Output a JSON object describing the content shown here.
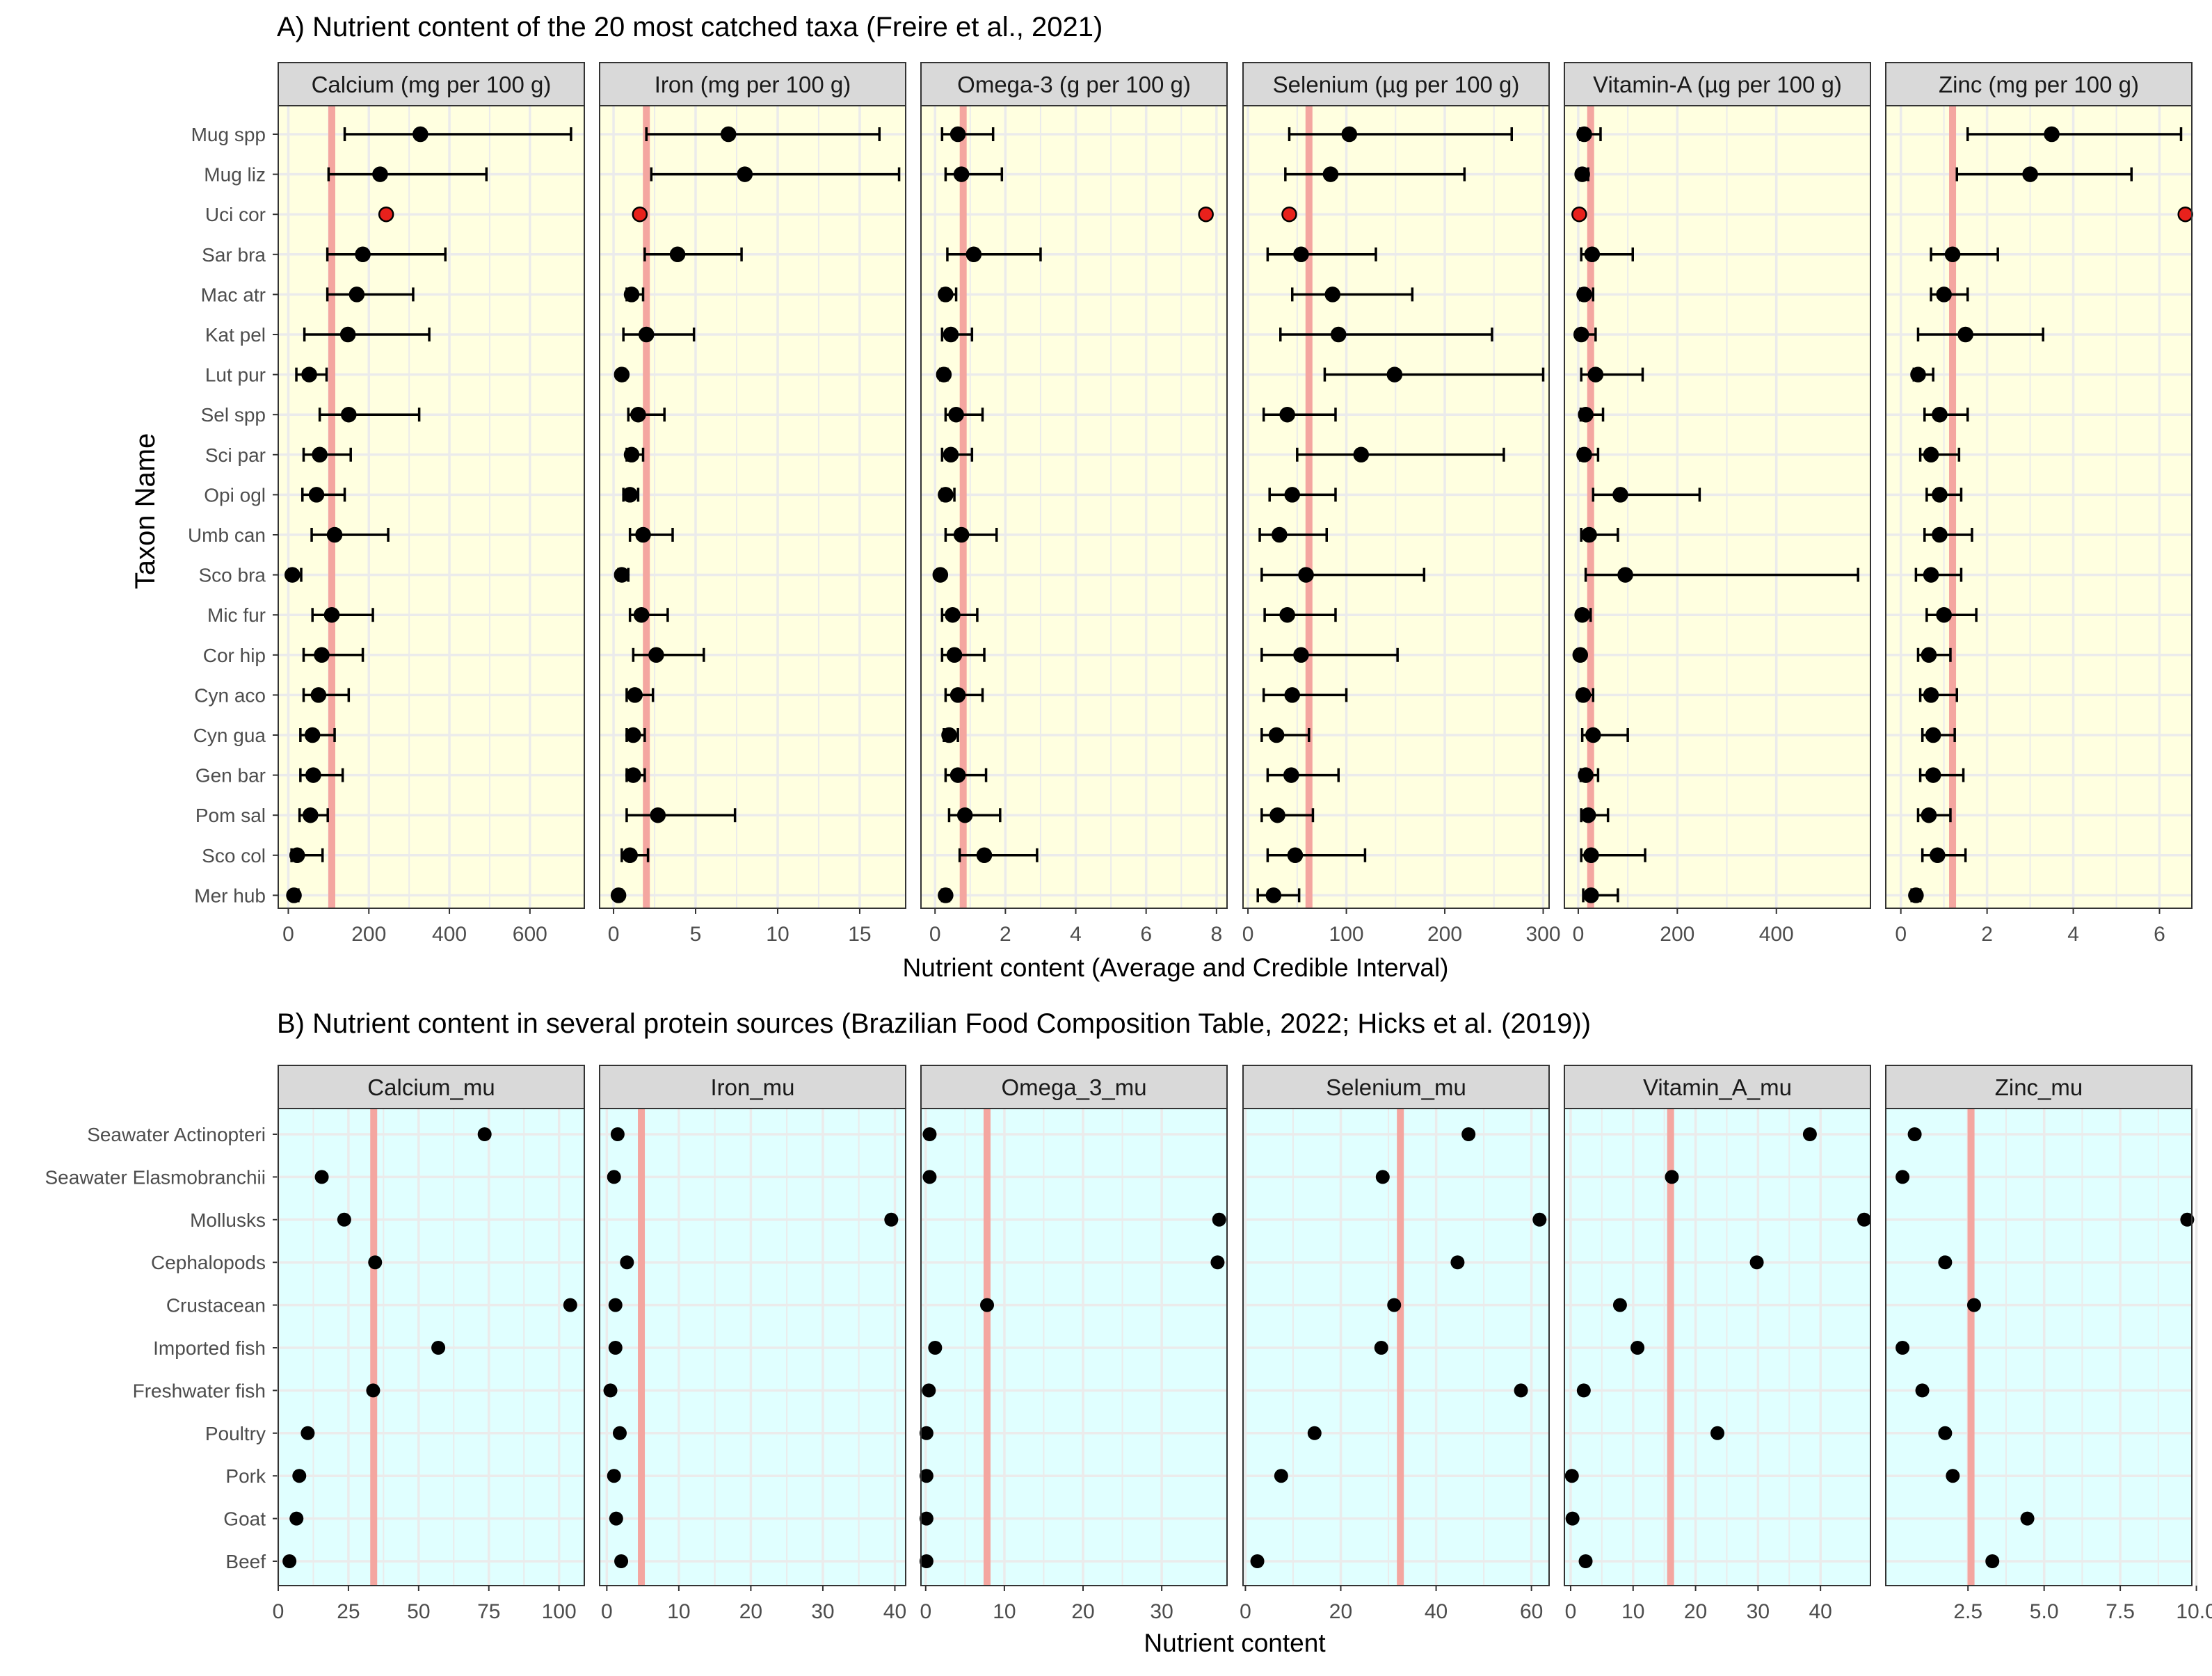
{
  "figure": {
    "xlabel_a": "Nutrient content (Average and Credible Interval)",
    "ylabel_a": "Taxon Name",
    "xlabel_b": "Nutrient content"
  },
  "colors": {
    "panel_a_bg": "#FFFFE0",
    "panel_b_bg": "#E0FFFF",
    "strip_bg": "#D9D9D9",
    "reference_line": "#F4A6A0",
    "point": "#000000",
    "highlight_point": "#E8211C",
    "grid": "#EBEBEB"
  },
  "chart_data": [
    {
      "type": "scatter",
      "subtype": "point-range (facet_wrap)",
      "title": "A) Nutrient content of the 20 most catched taxa (Freire et al., 2021)",
      "xlabel": "Nutrient content (Average and Credible Interval)",
      "ylabel": "Taxon Name",
      "grid": true,
      "categories": [
        "Mug spp",
        "Mug liz",
        "Uci cor",
        "Sar bra",
        "Mac atr",
        "Kat pel",
        "Lut pur",
        "Sel spp",
        "Sci par",
        "Opi ogl",
        "Umb can",
        "Sco bra",
        "Mic fur",
        "Cor hip",
        "Cyn aco",
        "Cyn gua",
        "Gen bar",
        "Pom sal",
        "Sco col",
        "Mer hub"
      ],
      "highlight_category": "Uci cor",
      "facets": [
        {
          "name": "Calcium (mg per 100 g)",
          "xlim": [
            -25,
            735
          ],
          "ticks": [
            0,
            200,
            400,
            600
          ],
          "ref": 108,
          "mean": [
            328,
            228,
            243,
            185,
            170,
            148,
            52,
            150,
            78,
            70,
            115,
            10,
            108,
            83,
            75,
            60,
            62,
            55,
            22,
            14
          ],
          "low": [
            140,
            100,
            null,
            97,
            97,
            40,
            20,
            78,
            38,
            35,
            58,
            2,
            60,
            38,
            38,
            30,
            30,
            28,
            8,
            8
          ],
          "high": [
            702,
            492,
            null,
            390,
            310,
            350,
            95,
            325,
            155,
            140,
            248,
            32,
            210,
            185,
            150,
            115,
            135,
            98,
            85,
            25
          ]
        },
        {
          "name": "Iron (mg per 100 g)",
          "xlim": [
            -0.85,
            17.8
          ],
          "ticks": [
            0,
            5,
            10,
            15
          ],
          "ref": 2.0,
          "mean": [
            7.0,
            8.0,
            1.6,
            3.9,
            1.1,
            2.0,
            0.5,
            1.5,
            1.1,
            1.0,
            1.8,
            0.5,
            1.7,
            2.6,
            1.3,
            1.2,
            1.2,
            2.7,
            1.0,
            0.3
          ],
          "low": [
            2.0,
            2.3,
            null,
            1.9,
            0.8,
            0.6,
            0.4,
            0.9,
            0.8,
            0.6,
            1.0,
            0.3,
            1.0,
            1.2,
            0.8,
            0.8,
            0.8,
            0.8,
            0.5,
            0.2
          ],
          "high": [
            16.2,
            17.4,
            null,
            7.8,
            1.8,
            4.9,
            0.7,
            3.1,
            1.8,
            1.5,
            3.6,
            0.9,
            3.3,
            5.5,
            2.4,
            1.9,
            1.9,
            7.4,
            2.1,
            0.5
          ]
        },
        {
          "name": "Omega-3 (g per 100 g)",
          "xlim": [
            -0.4,
            8.3
          ],
          "ticks": [
            0,
            2,
            4,
            6,
            8
          ],
          "ref": 0.8,
          "mean": [
            0.65,
            0.75,
            7.7,
            1.1,
            0.3,
            0.45,
            0.25,
            0.6,
            0.45,
            0.3,
            0.75,
            0.15,
            0.5,
            0.55,
            0.65,
            0.4,
            0.65,
            0.85,
            1.4,
            0.3
          ],
          "low": [
            0.2,
            0.3,
            null,
            0.35,
            0.2,
            0.2,
            0.15,
            0.3,
            0.2,
            0.2,
            0.3,
            0.1,
            0.2,
            0.2,
            0.3,
            0.25,
            0.3,
            0.4,
            0.7,
            0.2
          ],
          "high": [
            1.65,
            1.9,
            null,
            3.0,
            0.6,
            1.05,
            0.35,
            1.35,
            1.05,
            0.55,
            1.75,
            0.2,
            1.2,
            1.4,
            1.35,
            0.65,
            1.45,
            1.85,
            2.9,
            0.4
          ]
        },
        {
          "name": "Selenium (µg per 100 g)",
          "xlim": [
            -5,
            306
          ],
          "ticks": [
            0,
            100,
            200,
            300
          ],
          "ref": 62,
          "mean": [
            103,
            84,
            42,
            54,
            86,
            92,
            149,
            40,
            115,
            45,
            32,
            59,
            40,
            54,
            45,
            29,
            44,
            30,
            48,
            26
          ],
          "low": [
            42,
            38,
            null,
            20,
            45,
            33,
            78,
            16,
            50,
            22,
            12,
            14,
            17,
            14,
            16,
            14,
            20,
            14,
            20,
            10
          ],
          "high": [
            268,
            220,
            null,
            130,
            167,
            248,
            300,
            89,
            260,
            89,
            80,
            179,
            89,
            152,
            100,
            62,
            92,
            66,
            119,
            52
          ]
        },
        {
          "name": "Vitamin-A (µg per 100 g)",
          "xlim": [
            -28,
            590
          ],
          "ticks": [
            0,
            200,
            400
          ],
          "ref": 25,
          "mean": [
            12,
            8,
            2,
            28,
            12,
            6,
            35,
            15,
            12,
            85,
            22,
            95,
            8,
            4,
            10,
            30,
            15,
            20,
            26,
            26
          ],
          "low": [
            4,
            2,
            null,
            6,
            4,
            2,
            6,
            5,
            4,
            30,
            6,
            15,
            2,
            1,
            3,
            8,
            5,
            6,
            6,
            10
          ],
          "high": [
            45,
            20,
            null,
            110,
            30,
            35,
            130,
            50,
            40,
            245,
            80,
            565,
            25,
            10,
            30,
            100,
            40,
            60,
            135,
            80
          ]
        },
        {
          "name": "Zinc (mg per 100 g)",
          "xlim": [
            -0.35,
            6.75
          ],
          "ticks": [
            0,
            2,
            4,
            6
          ],
          "ref": 1.2,
          "mean": [
            3.5,
            3.0,
            6.6,
            1.2,
            1.0,
            1.5,
            0.4,
            0.9,
            0.7,
            0.9,
            0.9,
            0.7,
            1.0,
            0.65,
            0.7,
            0.75,
            0.75,
            0.65,
            0.85,
            0.35
          ],
          "low": [
            1.55,
            1.3,
            null,
            0.7,
            0.7,
            0.4,
            0.3,
            0.55,
            0.45,
            0.6,
            0.55,
            0.35,
            0.6,
            0.4,
            0.45,
            0.5,
            0.45,
            0.4,
            0.5,
            0.25
          ],
          "high": [
            6.5,
            5.35,
            null,
            2.25,
            1.55,
            3.3,
            0.75,
            1.55,
            1.35,
            1.4,
            1.65,
            1.4,
            1.75,
            1.15,
            1.3,
            1.25,
            1.45,
            1.15,
            1.5,
            0.45
          ]
        }
      ]
    },
    {
      "type": "scatter",
      "subtype": "dot plot (facet_wrap)",
      "title": "B) Nutrient content in several protein sources (Brazilian Food Composition Table, 2022; Hicks et al. (2019))",
      "xlabel": "Nutrient content",
      "ylabel": "",
      "grid": true,
      "categories": [
        "Seawater Actinopteri",
        "Seawater Elasmobranchii",
        "Mollusks",
        "Cephalopods",
        "Crustacean",
        "Imported fish",
        "Freshwater fish",
        "Poultry",
        "Pork",
        "Goat",
        "Beef"
      ],
      "facets": [
        {
          "name": "Calcium_mu",
          "xlim": [
            0,
            109
          ],
          "ticks": [
            0,
            25,
            50,
            75,
            100
          ],
          "ref": 34,
          "values": [
            73.5,
            15.5,
            23.5,
            34.5,
            104,
            57,
            33.8,
            10.5,
            7.5,
            6.5,
            4
          ]
        },
        {
          "name": "Iron_mu",
          "xlim": [
            -1,
            41.5
          ],
          "ticks": [
            0,
            10,
            20,
            30,
            40
          ],
          "ref": 4.8,
          "values": [
            1.5,
            1.0,
            39.5,
            2.8,
            1.2,
            1.2,
            0.5,
            1.8,
            1.0,
            1.3,
            2.0
          ]
        },
        {
          "name": "Omega_3_mu",
          "xlim": [
            -0.6,
            38.3
          ],
          "ticks": [
            0,
            10,
            20,
            30
          ],
          "ref": 7.8,
          "values": [
            0.5,
            0.5,
            37.3,
            37.1,
            7.8,
            1.2,
            0.4,
            0.1,
            0.1,
            0.1,
            0.1
          ]
        },
        {
          "name": "Selenium_mu",
          "xlim": [
            -0.5,
            63.7
          ],
          "ticks": [
            0,
            20,
            40,
            60
          ],
          "ref": 32.5,
          "values": [
            46.8,
            28.8,
            61.7,
            44.5,
            31.2,
            28.5,
            57.8,
            14.5,
            7.5,
            null,
            2.5
          ]
        },
        {
          "name": "Vitamin_A_mu",
          "xlim": [
            -1,
            48
          ],
          "ticks": [
            0,
            10,
            20,
            30,
            40
          ],
          "ref": 16,
          "values": [
            38.3,
            16.2,
            47,
            29.8,
            7.9,
            10.7,
            2.1,
            23.5,
            0.2,
            0.3,
            2.4
          ]
        },
        {
          "name": "Zinc_mu",
          "xlim": [
            -0.2,
            9.85
          ],
          "ticks": [
            2.5,
            5.0,
            7.5,
            10.0
          ],
          "tick_labels": [
            "2.5",
            "5.0",
            "7.5",
            "10.0"
          ],
          "ref": 2.6,
          "values": [
            0.75,
            0.35,
            9.7,
            1.75,
            2.7,
            0.35,
            1.0,
            1.75,
            2.0,
            4.45,
            3.3
          ]
        }
      ]
    }
  ]
}
